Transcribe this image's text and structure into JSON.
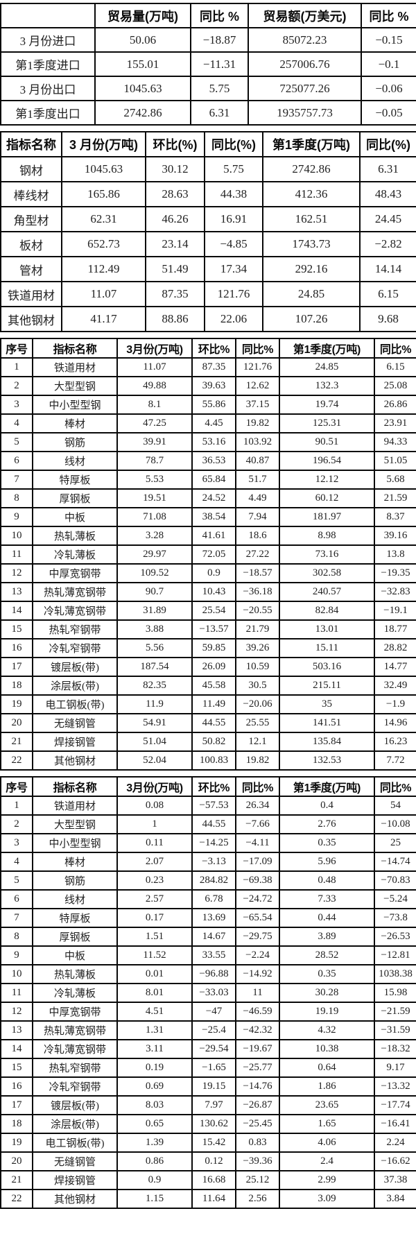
{
  "colors": {
    "border": "#080808",
    "text": "#222222",
    "background": "#ffffff"
  },
  "trade_summary_table": {
    "headers": [
      "",
      "贸易量(万吨)",
      "同比 %",
      "贸易额(万美元)",
      "同比 %"
    ],
    "rows": [
      [
        "3 月份进口",
        "50.06",
        "−18.87",
        "85072.23",
        "−0.15"
      ],
      [
        "第1季度进口",
        "155.01",
        "−11.31",
        "257006.76",
        "−0.1"
      ],
      [
        "3 月份出口",
        "1045.63",
        "5.75",
        "725077.26",
        "−0.06"
      ],
      [
        "第1季度出口",
        "2742.86",
        "6.31",
        "1935757.73",
        "−0.05"
      ]
    ]
  },
  "category_summary_table": {
    "headers": [
      "指标名称",
      "3 月份(万吨)",
      "环比(%)",
      "同比(%)",
      "第1季度(万吨)",
      "同比(%)"
    ],
    "rows": [
      [
        "钢材",
        "1045.63",
        "30.12",
        "5.75",
        "2742.86",
        "6.31"
      ],
      [
        "棒线材",
        "165.86",
        "28.63",
        "44.38",
        "412.36",
        "48.43"
      ],
      [
        "角型材",
        "62.31",
        "46.26",
        "16.91",
        "162.51",
        "24.45"
      ],
      [
        "板材",
        "652.73",
        "23.14",
        "−4.85",
        "1743.73",
        "−2.82"
      ],
      [
        "管材",
        "112.49",
        "51.49",
        "17.34",
        "292.16",
        "14.14"
      ],
      [
        "铁道用材",
        "11.07",
        "87.35",
        "121.76",
        "24.85",
        "6.15"
      ],
      [
        "其他钢材",
        "41.17",
        "88.86",
        "22.06",
        "107.26",
        "9.68"
      ]
    ]
  },
  "product_detail_table_1": {
    "headers": [
      "序号",
      "指标名称",
      "3月份(万吨)",
      "环比%",
      "同比%",
      "第1季度(万吨)",
      "同比%"
    ],
    "rows": [
      [
        "1",
        "铁道用材",
        "11.07",
        "87.35",
        "121.76",
        "24.85",
        "6.15"
      ],
      [
        "2",
        "大型型钢",
        "49.88",
        "39.63",
        "12.62",
        "132.3",
        "25.08"
      ],
      [
        "3",
        "中小型型钢",
        "8.1",
        "55.86",
        "37.15",
        "19.74",
        "26.86"
      ],
      [
        "4",
        "棒材",
        "47.25",
        "4.45",
        "19.82",
        "125.31",
        "23.91"
      ],
      [
        "5",
        "钢筋",
        "39.91",
        "53.16",
        "103.92",
        "90.51",
        "94.33"
      ],
      [
        "6",
        "线材",
        "78.7",
        "36.53",
        "40.87",
        "196.54",
        "51.05"
      ],
      [
        "7",
        "特厚板",
        "5.53",
        "65.84",
        "51.7",
        "12.12",
        "5.68"
      ],
      [
        "8",
        "厚钢板",
        "19.51",
        "24.52",
        "4.49",
        "60.12",
        "21.59"
      ],
      [
        "9",
        "中板",
        "71.08",
        "38.54",
        "7.94",
        "181.97",
        "8.37"
      ],
      [
        "10",
        "热轧薄板",
        "3.28",
        "41.61",
        "18.6",
        "8.98",
        "39.16"
      ],
      [
        "11",
        "冷轧薄板",
        "29.97",
        "72.05",
        "27.22",
        "73.16",
        "13.8"
      ],
      [
        "12",
        "中厚宽钢带",
        "109.52",
        "0.9",
        "−18.57",
        "302.58",
        "−19.35"
      ],
      [
        "13",
        "热轧薄宽钢带",
        "90.7",
        "10.43",
        "−36.18",
        "240.57",
        "−32.83"
      ],
      [
        "14",
        "冷轧薄宽钢带",
        "31.89",
        "25.54",
        "−20.55",
        "82.84",
        "−19.1"
      ],
      [
        "15",
        "热轧窄钢带",
        "3.88",
        "−13.57",
        "21.79",
        "13.01",
        "18.77"
      ],
      [
        "16",
        "冷轧窄钢带",
        "5.56",
        "59.85",
        "39.26",
        "15.11",
        "28.82"
      ],
      [
        "17",
        "镀层板(带)",
        "187.54",
        "26.09",
        "10.59",
        "503.16",
        "14.77"
      ],
      [
        "18",
        "涂层板(带)",
        "82.35",
        "45.58",
        "30.5",
        "215.11",
        "32.49"
      ],
      [
        "19",
        "电工钢板(带)",
        "11.9",
        "11.49",
        "−20.06",
        "35",
        "−1.9"
      ],
      [
        "20",
        "无缝钢管",
        "54.91",
        "44.55",
        "25.55",
        "141.51",
        "14.96"
      ],
      [
        "21",
        "焊接钢管",
        "51.04",
        "50.82",
        "12.1",
        "135.84",
        "16.23"
      ],
      [
        "22",
        "其他钢材",
        "52.04",
        "100.83",
        "19.82",
        "132.53",
        "7.72"
      ]
    ]
  },
  "product_detail_table_2": {
    "headers": [
      "序号",
      "指标名称",
      "3月份(万吨)",
      "环比%",
      "同比%",
      "第1季度(万吨)",
      "同比%"
    ],
    "rows": [
      [
        "1",
        "铁道用材",
        "0.08",
        "−57.53",
        "26.34",
        "0.4",
        "54"
      ],
      [
        "2",
        "大型型钢",
        "1",
        "44.55",
        "−7.66",
        "2.76",
        "−10.08"
      ],
      [
        "3",
        "中小型型钢",
        "0.11",
        "−14.25",
        "−4.11",
        "0.35",
        "25"
      ],
      [
        "4",
        "棒材",
        "2.07",
        "−3.13",
        "−17.09",
        "5.96",
        "−14.74"
      ],
      [
        "5",
        "钢筋",
        "0.23",
        "284.82",
        "−69.38",
        "0.48",
        "−70.83"
      ],
      [
        "6",
        "线材",
        "2.57",
        "6.78",
        "−24.72",
        "7.33",
        "−5.24"
      ],
      [
        "7",
        "特厚板",
        "0.17",
        "13.69",
        "−65.54",
        "0.44",
        "−73.8"
      ],
      [
        "8",
        "厚钢板",
        "1.51",
        "14.67",
        "−29.75",
        "3.89",
        "−26.53"
      ],
      [
        "9",
        "中板",
        "11.52",
        "33.55",
        "−2.24",
        "28.52",
        "−12.81"
      ],
      [
        "10",
        "热轧薄板",
        "0.01",
        "−96.88",
        "−14.92",
        "0.35",
        "1038.38"
      ],
      [
        "11",
        "冷轧薄板",
        "8.01",
        "−33.03",
        "11",
        "30.28",
        "15.98"
      ],
      [
        "12",
        "中厚宽钢带",
        "4.51",
        "−47",
        "−46.59",
        "19.19",
        "−21.59"
      ],
      [
        "13",
        "热轧薄宽钢带",
        "1.31",
        "−25.4",
        "−42.32",
        "4.32",
        "−31.59"
      ],
      [
        "14",
        "冷轧薄宽钢带",
        "3.11",
        "−29.54",
        "−19.67",
        "10.38",
        "−18.32"
      ],
      [
        "15",
        "热轧窄钢带",
        "0.19",
        "−1.65",
        "−25.77",
        "0.64",
        "9.17"
      ],
      [
        "16",
        "冷轧窄钢带",
        "0.69",
        "19.15",
        "−14.76",
        "1.86",
        "−13.32"
      ],
      [
        "17",
        "镀层板(带)",
        "8.03",
        "7.97",
        "−26.87",
        "23.65",
        "−17.74"
      ],
      [
        "18",
        "涂层板(带)",
        "0.65",
        "130.62",
        "−25.45",
        "1.65",
        "−16.41"
      ],
      [
        "19",
        "电工钢板(带)",
        "1.39",
        "15.42",
        "0.83",
        "4.06",
        "2.24"
      ],
      [
        "20",
        "无缝钢管",
        "0.86",
        "0.12",
        "−39.36",
        "2.4",
        "−16.62"
      ],
      [
        "21",
        "焊接钢管",
        "0.9",
        "16.68",
        "25.12",
        "2.99",
        "37.38"
      ],
      [
        "22",
        "其他钢材",
        "1.15",
        "11.64",
        "2.56",
        "3.09",
        "3.84"
      ]
    ]
  }
}
